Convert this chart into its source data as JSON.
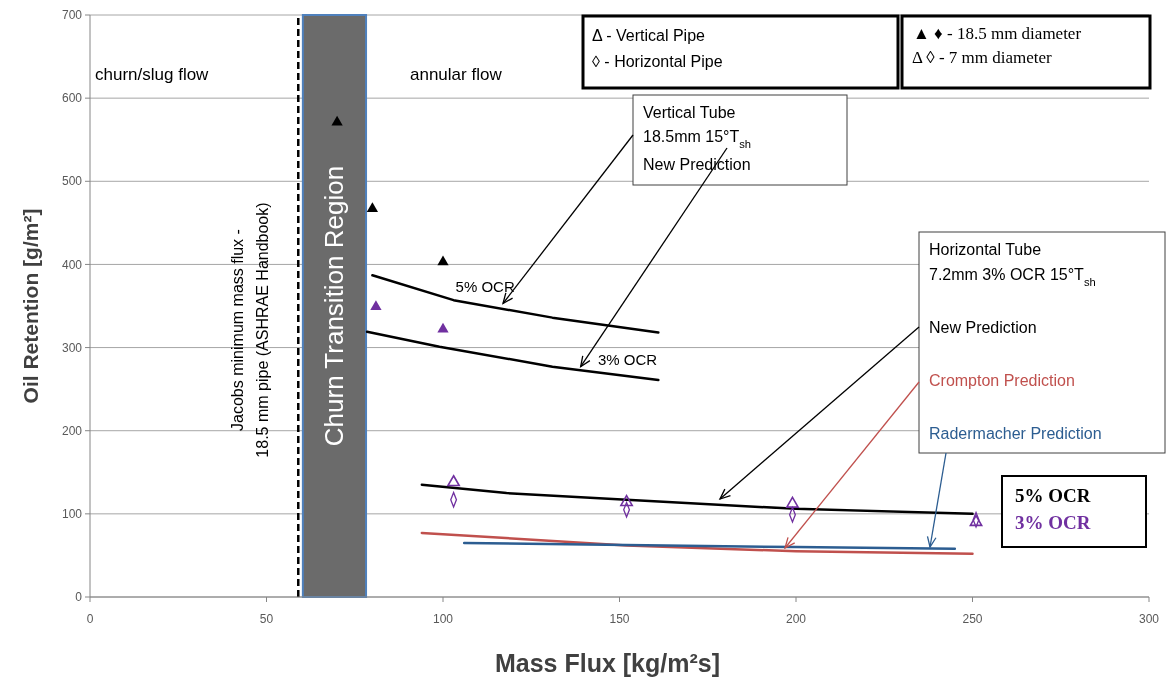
{
  "chart_data": {
    "type": "line",
    "xlabel": "Mass Flux [kg/m²s]",
    "ylabel": "Oil Retention  [g/m²]",
    "xlim": [
      0,
      300
    ],
    "xticks": [
      0,
      50,
      100,
      150,
      200,
      250,
      300
    ],
    "ylim": [
      0,
      700
    ],
    "yticks": [
      0,
      100,
      200,
      300,
      400,
      500,
      600,
      700
    ],
    "grid": "y",
    "legend": "right",
    "series": [
      {
        "name": "5% OCR",
        "color": "#000000",
        "x": [
          80,
          103,
          131,
          161
        ],
        "values": [
          387,
          357,
          336,
          318
        ]
      },
      {
        "name": "3% OCR",
        "color": "#000000",
        "x": [
          78.5,
          99,
          131,
          161
        ],
        "values": [
          319,
          301,
          277,
          261
        ]
      },
      {
        "name": "New Prediction",
        "color": "#000000",
        "x": [
          94,
          118,
          152,
          200,
          250
        ],
        "values": [
          135,
          125,
          117,
          106,
          100
        ]
      },
      {
        "name": "Crompton Prediction",
        "color": "#c0504d",
        "x": [
          94,
          152,
          200,
          250
        ],
        "values": [
          77,
          62,
          55,
          52
        ]
      },
      {
        "name": "Radermacher Prediction",
        "color": "#2c5d91",
        "x": [
          106,
          200,
          245
        ],
        "values": [
          65,
          60,
          58
        ]
      },
      {
        "type": "scatter",
        "marker": "triangle",
        "color": "#000000",
        "x": [
          70,
          80,
          100
        ],
        "values": [
          571,
          467,
          403
        ]
      },
      {
        "type": "scatter",
        "marker": "triangle",
        "color": "#7030a0",
        "x": [
          81,
          100
        ],
        "values": [
          349,
          322
        ]
      },
      {
        "type": "scatter",
        "marker": "triangle-open",
        "color": "#7030a0",
        "x": [
          103,
          152,
          199,
          251
        ],
        "values": [
          138,
          114,
          112,
          90
        ]
      },
      {
        "type": "scatter",
        "marker": "diamond-open",
        "color": "#7030a0",
        "x": [
          103,
          152,
          199,
          251
        ],
        "values": [
          117,
          105,
          99,
          93
        ]
      }
    ],
    "bands": [
      {
        "axis": "x",
        "from": 60.3,
        "to": 78.2,
        "label": "Churn Transition Region",
        "color": "#6b6b6b"
      }
    ],
    "ref_lines": [
      {
        "axis": "x",
        "value": 59,
        "label": "Jacobs minimum mass flux - 18.5 mm pipe (ASHRAE Handbook)",
        "color": "#000000",
        "line_style": "dashed"
      }
    ],
    "annotations": [
      "churn/slug flow",
      "annular flow",
      "Δ  -  Vertical Pipe",
      "◊ - Horizontal Pipe",
      "▲ ♦ - 18.5 mm diameter",
      "Δ ◊ - 7 mm diameter",
      {
        "text": "Vertical Tube",
        "x": 117,
        "y": 353
      },
      {
        "text": "18.5mm   15°T$_{sh}$",
        "x": 139,
        "y": 277
      },
      "New Prediction",
      "Horizontal Tube",
      "7.2mm   3% OCR  15°T$_{sh}$",
      "5% OCR",
      "3% OCR"
    ]
  }
}
